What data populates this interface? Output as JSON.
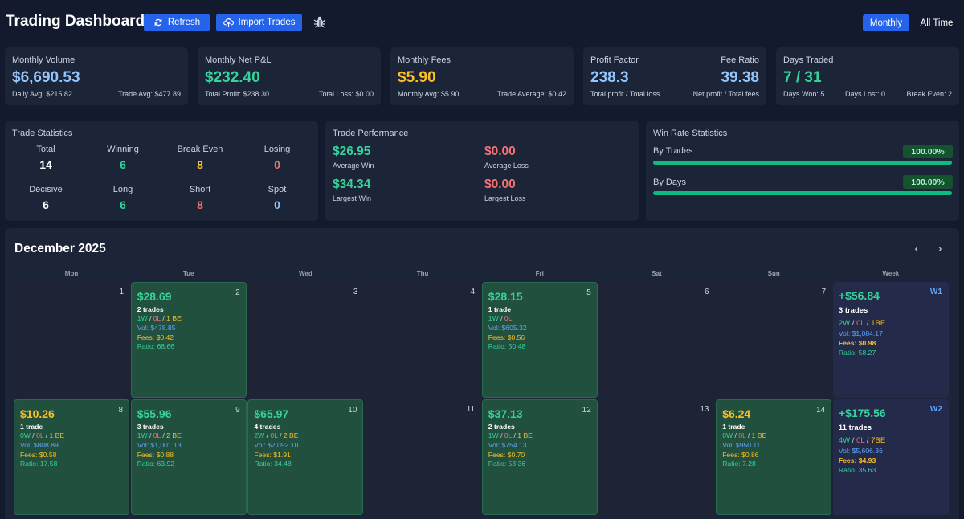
{
  "header": {
    "title": "Trading Dashboard",
    "refresh": "Refresh",
    "import": "Import Trades",
    "monthly": "Monthly",
    "all_time": "All Time"
  },
  "volume": {
    "label": "Monthly Volume",
    "value": "$6,690.53",
    "daily": "Daily Avg: $215.82",
    "trade": "Trade Avg: $477.89"
  },
  "pnl": {
    "label": "Monthly Net P&L",
    "value": "$232.40",
    "profit": "Total Profit: $238.30",
    "loss": "Total Loss: $0.00"
  },
  "fees": {
    "label": "Monthly Fees",
    "value": "$5.90",
    "avg": "Monthly Avg: $5.90",
    "trade": "Trade Average: $0.42"
  },
  "ratios": {
    "pf_label": "Profit Factor",
    "pf_value": "238.3",
    "pf_desc": "Total profit / Total loss",
    "fr_label": "Fee Ratio",
    "fr_value": "39.38",
    "fr_desc": "Net profit / Total fees"
  },
  "days": {
    "label": "Days Traded",
    "value": "7 / 31",
    "won": "Days Won: 5",
    "lost": "Days Lost: 0",
    "be": "Break Even: 2"
  },
  "trade_stats": {
    "title": "Trade Statistics",
    "items": [
      {
        "label": "Total",
        "value": "14"
      },
      {
        "label": "Winning",
        "value": "6"
      },
      {
        "label": "Break Even",
        "value": "8"
      },
      {
        "label": "Losing",
        "value": "0"
      },
      {
        "label": "Decisive",
        "value": "6"
      },
      {
        "label": "Long",
        "value": "6"
      },
      {
        "label": "Short",
        "value": "8"
      },
      {
        "label": "Spot",
        "value": "0"
      }
    ]
  },
  "performance": {
    "title": "Trade Performance",
    "avg_win": "$26.95",
    "avg_win_label": "Average Win",
    "avg_loss": "$0.00",
    "avg_loss_label": "Average Loss",
    "largest_win": "$34.34",
    "largest_win_label": "Largest Win",
    "largest_loss": "$0.00",
    "largest_loss_label": "Largest Loss"
  },
  "winrate": {
    "title": "Win Rate Statistics",
    "by_trades": "By Trades",
    "by_trades_value": "100.00%",
    "by_trades_fraction": 1.0,
    "by_days": "By Days",
    "by_days_value": "100.00%",
    "by_days_fraction": 1.0
  },
  "calendar": {
    "title": "December 2025",
    "days_of_week": [
      "Mon",
      "Tue",
      "Wed",
      "Thu",
      "Fri",
      "Sat",
      "Sun",
      "Week"
    ],
    "row1": [
      {
        "day": "1"
      },
      {
        "day": "2",
        "pnl": "$28.69",
        "trades": "2 trades",
        "w": "1W",
        "l": "0L",
        "be": "1 BE",
        "vol": "Vol: $478.85",
        "fees": "Fees: $0.42",
        "ratio": "Ratio: 68.66"
      },
      {
        "day": "3"
      },
      {
        "day": "4"
      },
      {
        "day": "5",
        "pnl": "$28.15",
        "trades": "1 trade",
        "w": "1W",
        "l": "0L",
        "be": "",
        "vol": "Vol: $605.32",
        "fees": "Fees: $0.56",
        "ratio": "Ratio: 50.48"
      },
      {
        "day": "6"
      },
      {
        "day": "7"
      }
    ],
    "week1": {
      "label": "W1",
      "pnl": "+$56.84",
      "trades": "3 trades",
      "w": "2W",
      "l": "0L",
      "be": "1BE",
      "vol": "Vol: $1,084.17",
      "fees": "Fees: $0.98",
      "ratio": "Ratio: 58.27"
    },
    "row2": [
      {
        "day": "8",
        "pnl": "$10.26",
        "trades": "1 trade",
        "w": "0W",
        "l": "0L",
        "be": "1 BE",
        "vol": "Vol: $808.89",
        "fees": "Fees: $0.58",
        "ratio": "Ratio: 17.58"
      },
      {
        "day": "9",
        "pnl": "$55.96",
        "trades": "3 trades",
        "w": "1W",
        "l": "0L",
        "be": "2 BE",
        "vol": "Vol: $1,001.13",
        "fees": "Fees: $0.88",
        "ratio": "Ratio: 63.92"
      },
      {
        "day": "10",
        "pnl": "$65.97",
        "trades": "4 trades",
        "w": "2W",
        "l": "0L",
        "be": "2 BE",
        "vol": "Vol: $2,092.10",
        "fees": "Fees: $1.91",
        "ratio": "Ratio: 34.48"
      },
      {
        "day": "11"
      },
      {
        "day": "12",
        "pnl": "$37.13",
        "trades": "2 trades",
        "w": "1W",
        "l": "0L",
        "be": "1 BE",
        "vol": "Vol: $754.13",
        "fees": "Fees: $0.70",
        "ratio": "Ratio: 53.36"
      },
      {
        "day": "13"
      },
      {
        "day": "14",
        "pnl": "$6.24",
        "trades": "1 trade",
        "w": "0W",
        "l": "0L",
        "be": "1 BE",
        "vol": "Vol: $950.11",
        "fees": "Fees: $0.86",
        "ratio": "Ratio: 7.28"
      }
    ],
    "week2": {
      "label": "W2",
      "pnl": "+$175.56",
      "trades": "11 trades",
      "w": "4W",
      "l": "0L",
      "be": "7BE",
      "vol": "Vol: $5,606.36",
      "fees": "Fees: $4.93",
      "ratio": "Ratio: 35.63"
    }
  },
  "colors": {
    "accent": "#2563eb",
    "green": "#34d399",
    "yellow": "#fbbf24",
    "red": "#f87171",
    "blue": "#93c5fd"
  }
}
